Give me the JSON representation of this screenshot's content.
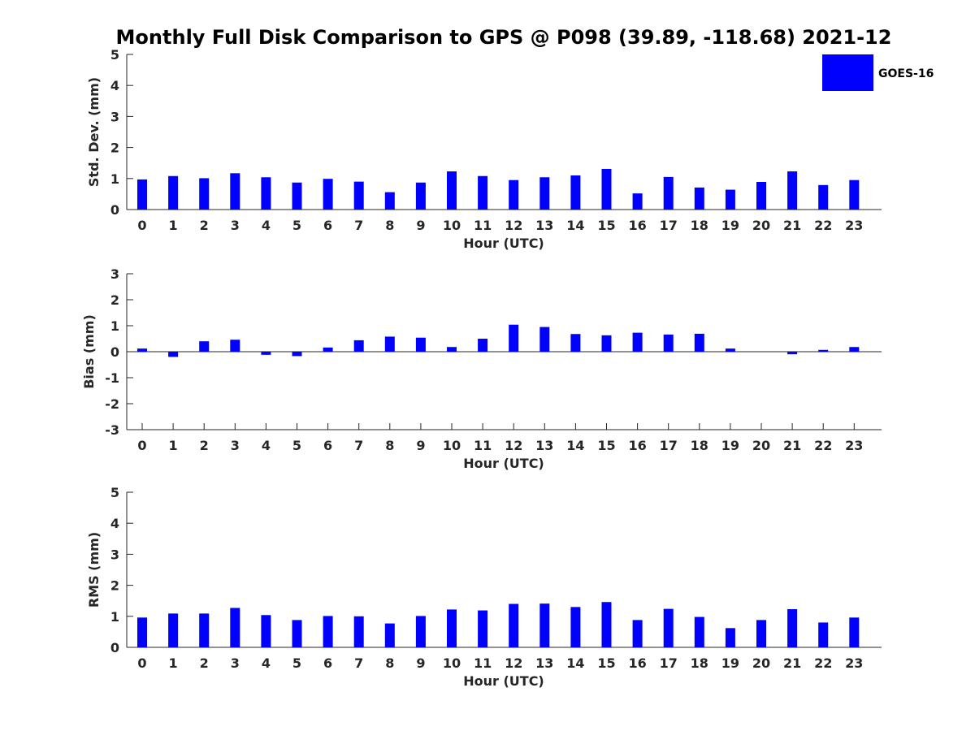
{
  "chart_data": [
    {
      "type": "bar",
      "title": "Monthly Full Disk Comparison to GPS @ P098 (39.89, -118.68) 2021-12",
      "xlabel": "Hour (UTC)",
      "ylabel": "Std. Dev. (mm)",
      "categories": [
        "0",
        "1",
        "2",
        "3",
        "4",
        "5",
        "6",
        "7",
        "8",
        "9",
        "10",
        "11",
        "12",
        "13",
        "14",
        "15",
        "16",
        "17",
        "18",
        "19",
        "20",
        "21",
        "22",
        "23"
      ],
      "ylim": [
        0,
        5
      ],
      "yticks": [
        0,
        1,
        2,
        3,
        4,
        5
      ],
      "grid": false,
      "legend": {
        "position": "top-right",
        "entries": [
          "GOES-16"
        ]
      },
      "series": [
        {
          "name": "GOES-16",
          "color": "#0000ff",
          "values": [
            0.97,
            1.08,
            1.01,
            1.17,
            1.04,
            0.87,
            0.99,
            0.9,
            0.56,
            0.87,
            1.23,
            1.08,
            0.95,
            1.04,
            1.1,
            1.31,
            0.52,
            1.05,
            0.71,
            0.64,
            0.89,
            1.23,
            0.79,
            0.95
          ]
        }
      ]
    },
    {
      "type": "bar",
      "xlabel": "Hour (UTC)",
      "ylabel": "Bias (mm)",
      "categories": [
        "0",
        "1",
        "2",
        "3",
        "4",
        "5",
        "6",
        "7",
        "8",
        "9",
        "10",
        "11",
        "12",
        "13",
        "14",
        "15",
        "16",
        "17",
        "18",
        "19",
        "20",
        "21",
        "22",
        "23"
      ],
      "ylim": [
        -3,
        3
      ],
      "yticks": [
        -3,
        -2,
        -1,
        0,
        1,
        2,
        3
      ],
      "grid": false,
      "zero_line": true,
      "series": [
        {
          "name": "GOES-16",
          "color": "#0000ff",
          "values": [
            0.12,
            -0.2,
            0.4,
            0.46,
            -0.12,
            -0.17,
            0.16,
            0.44,
            0.58,
            0.54,
            0.18,
            0.5,
            1.04,
            0.95,
            0.68,
            0.63,
            0.73,
            0.66,
            0.69,
            0.12,
            0.0,
            -0.1,
            0.07,
            0.18
          ]
        }
      ]
    },
    {
      "type": "bar",
      "xlabel": "Hour (UTC)",
      "ylabel": "RMS (mm)",
      "categories": [
        "0",
        "1",
        "2",
        "3",
        "4",
        "5",
        "6",
        "7",
        "8",
        "9",
        "10",
        "11",
        "12",
        "13",
        "14",
        "15",
        "16",
        "17",
        "18",
        "19",
        "20",
        "21",
        "22",
        "23"
      ],
      "ylim": [
        0,
        5
      ],
      "yticks": [
        0,
        1,
        2,
        3,
        4,
        5
      ],
      "grid": false,
      "series": [
        {
          "name": "GOES-16",
          "color": "#0000ff",
          "values": [
            0.96,
            1.09,
            1.09,
            1.27,
            1.04,
            0.88,
            1.01,
            1.0,
            0.77,
            1.01,
            1.22,
            1.19,
            1.4,
            1.41,
            1.3,
            1.46,
            0.88,
            1.24,
            0.98,
            0.62,
            0.88,
            1.23,
            0.8,
            0.96
          ]
        }
      ]
    }
  ]
}
